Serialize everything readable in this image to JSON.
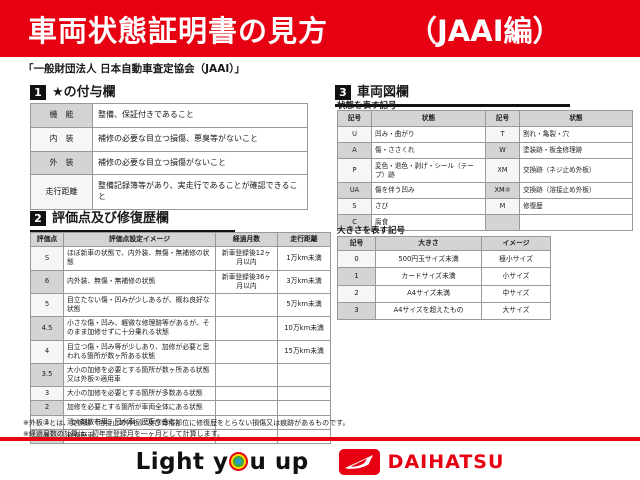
{
  "colors": {
    "accent_red": "#e60012",
    "header_gray": "#d4d4d4"
  },
  "banner": {
    "title": "車両状態証明書の見方",
    "edition": "（JAAI編）"
  },
  "subtitle": "「一般財団法人 日本自動車査定協会（JAAI）」",
  "section1": {
    "number": "1",
    "title": "★の付与欄",
    "rows": [
      [
        "機　能",
        "整備、保証付きであること"
      ],
      [
        "内　装",
        "補修の必要な目立つ損傷、悪臭等がないこと"
      ],
      [
        "外　装",
        "補修の必要な目立つ損傷がないこと"
      ],
      [
        "走行距離",
        "整備記録簿等があり、実走行であることが確認できること"
      ]
    ]
  },
  "section2": {
    "number": "2",
    "title": "評価点及び修復歴欄",
    "headers": [
      "評価点",
      "評価点設定イメージ",
      "経過月数",
      "走行距離"
    ],
    "rows": [
      [
        "S",
        "ほぼ新車の状態で、内外装、無傷・無補修の状態",
        "新車登録後12ヶ月以内",
        "1万km未満"
      ],
      [
        "6",
        "内外装、無傷・無補修の状態",
        "新車登録後36ヶ月以内",
        "3万km未満"
      ],
      [
        "5",
        "目立たない傷・凹みが少しあるが、概ね良好な状態",
        "",
        "5万km未満"
      ],
      [
        "4.5",
        "小さな傷・凹み、軽微な修理跡等があるが、そのまま加修せずに十分乗れる状態",
        "",
        "10万km未満"
      ],
      [
        "4",
        "目立つ傷・凹み等が少しあり、加修が必要と思われる箇所が数ヶ所ある状態",
        "",
        "15万km未満"
      ],
      [
        "3.5",
        "大小の加修を必要とする箇所が数ヶ所ある状態又は外板②適用車",
        "",
        ""
      ],
      [
        "3",
        "大小の加修を必要とする箇所が多数ある状態",
        "",
        ""
      ],
      [
        "2",
        "加修を必要とする箇所が車両全体にある状態",
        "",
        ""
      ],
      [
        "1",
        "消火剤散布車・冠水車（歴車を含む）",
        "",
        ""
      ],
      [
        "R",
        "修復歴車",
        "",
        ""
      ]
    ],
    "notes": [
      "※外板②とは、交換跡（溶接止め外板）及び骨格部位に修復歴をとらない損傷又は痕跡があるものです。",
      "※経過月数の計算は、初年度登録月を一ヶ月として計算します。"
    ]
  },
  "section3": {
    "number": "3",
    "title": "車両図欄",
    "state_table": {
      "subtitle": "状態を表す記号",
      "headers": [
        "記号",
        "状態",
        "記号",
        "状態"
      ],
      "rows": [
        [
          "U",
          "凹み・曲がり",
          "T",
          "割れ・亀裂・穴"
        ],
        [
          "A",
          "傷・ささくれ",
          "W",
          "塗装跡・板金修理跡"
        ],
        [
          "P",
          "変色・退色・剥げ・シール（テープ）跡",
          "XM",
          "交換跡（ネジ止め外板）"
        ],
        [
          "UA",
          "傷を伴う凹み",
          "XM②",
          "交換跡（溶接止め外板）"
        ],
        [
          "S",
          "さび",
          "M",
          "修復歴"
        ],
        [
          "C",
          "腐食",
          "",
          ""
        ]
      ]
    },
    "size_table": {
      "subtitle": "大きさを表す記号",
      "headers": [
        "記号",
        "大きさ",
        "イメージ"
      ],
      "rows": [
        [
          "0",
          "500円玉サイズ未満",
          "極小サイズ"
        ],
        [
          "1",
          "カードサイズ未満",
          "小サイズ"
        ],
        [
          "2",
          "A4サイズ未満",
          "中サイズ"
        ],
        [
          "3",
          "A4サイズを超えたもの",
          "大サイズ"
        ]
      ]
    }
  },
  "footer": {
    "slogan_left": "Light y",
    "slogan_right": "u up",
    "brand": "DAIHATSU"
  }
}
